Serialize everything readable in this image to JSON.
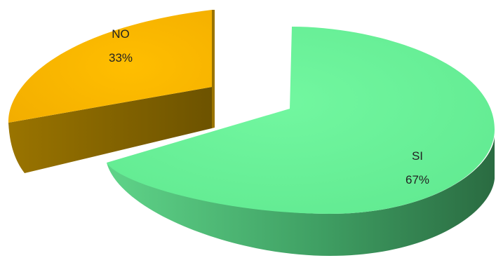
{
  "chart_data": {
    "type": "pie",
    "style": "3d-exploded",
    "legend": "none",
    "slices": [
      {
        "label": "SI",
        "value": 67,
        "value_label": "67%",
        "color": "#6ef59a",
        "side_color": "#3a9c5c"
      },
      {
        "label": "NO",
        "value": 33,
        "value_label": "33%",
        "color": "#f9b800",
        "side_color": "#8a6a00"
      }
    ]
  }
}
